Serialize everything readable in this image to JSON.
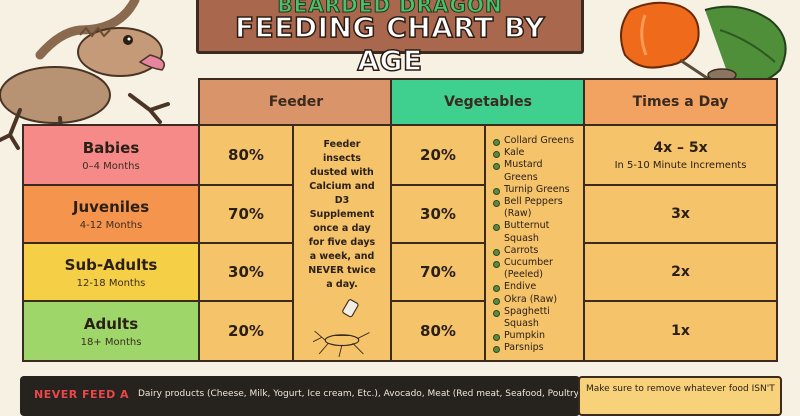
{
  "banner": {
    "top_text": "BEARDED DRAGON",
    "title": "FEEDING CHART BY AGE"
  },
  "headers": {
    "feeder": "Feeder",
    "vegetables": "Vegetables",
    "times": "Times a Day"
  },
  "rows": [
    {
      "name": "Babies",
      "range": "0–4 Months",
      "feeder_pct": "80%",
      "veg_pct": "20%",
      "times": "4x – 5x",
      "times_note": "In 5-10 Minute Increments"
    },
    {
      "name": "Juveniles",
      "range": "4-12 Months",
      "feeder_pct": "70%",
      "veg_pct": "30%",
      "times": "3x",
      "times_note": ""
    },
    {
      "name": "Sub-Adults",
      "range": "12-18 Months",
      "feeder_pct": "30%",
      "veg_pct": "70%",
      "times": "2x",
      "times_note": ""
    },
    {
      "name": "Adults",
      "range": "18+ Months",
      "feeder_pct": "20%",
      "veg_pct": "80%",
      "times": "1x",
      "times_note": ""
    }
  ],
  "feeder_note": {
    "part1": "Feeder insects dusted with Calcium and D3 Supplement once a day for five days a week, and",
    "part2": "NEVER twice a day."
  },
  "vegetables": [
    "Collard Greens",
    "Kale",
    "Mustard Greens",
    "Turnip Greens",
    "Bell Peppers (Raw)",
    "Butternut Squash",
    "Carrots",
    "Cucumber (Peeled)",
    "Endive",
    "Okra (Raw)",
    "Spaghetti Squash",
    "Pumpkin",
    "Parsnips"
  ],
  "bottom": {
    "never_label": "NEVER FEED A",
    "text": "Dairy products (Cheese, Milk, Yogurt, Ice cream, Etc.), Avocado, Meat (Red meat, Seafood, Poultry,"
  },
  "tip": {
    "text": "Make sure to remove whatever food ISN'T"
  },
  "colors": {
    "header_feeder": "#d9946a",
    "header_veg": "#3fcf8f",
    "header_times": "#f3a361",
    "body_cell": "#f5c36a",
    "row_babies": "#f58a88",
    "row_juveniles": "#f5954d",
    "row_subadults": "#f5cf45",
    "row_adults": "#9fd66a"
  }
}
